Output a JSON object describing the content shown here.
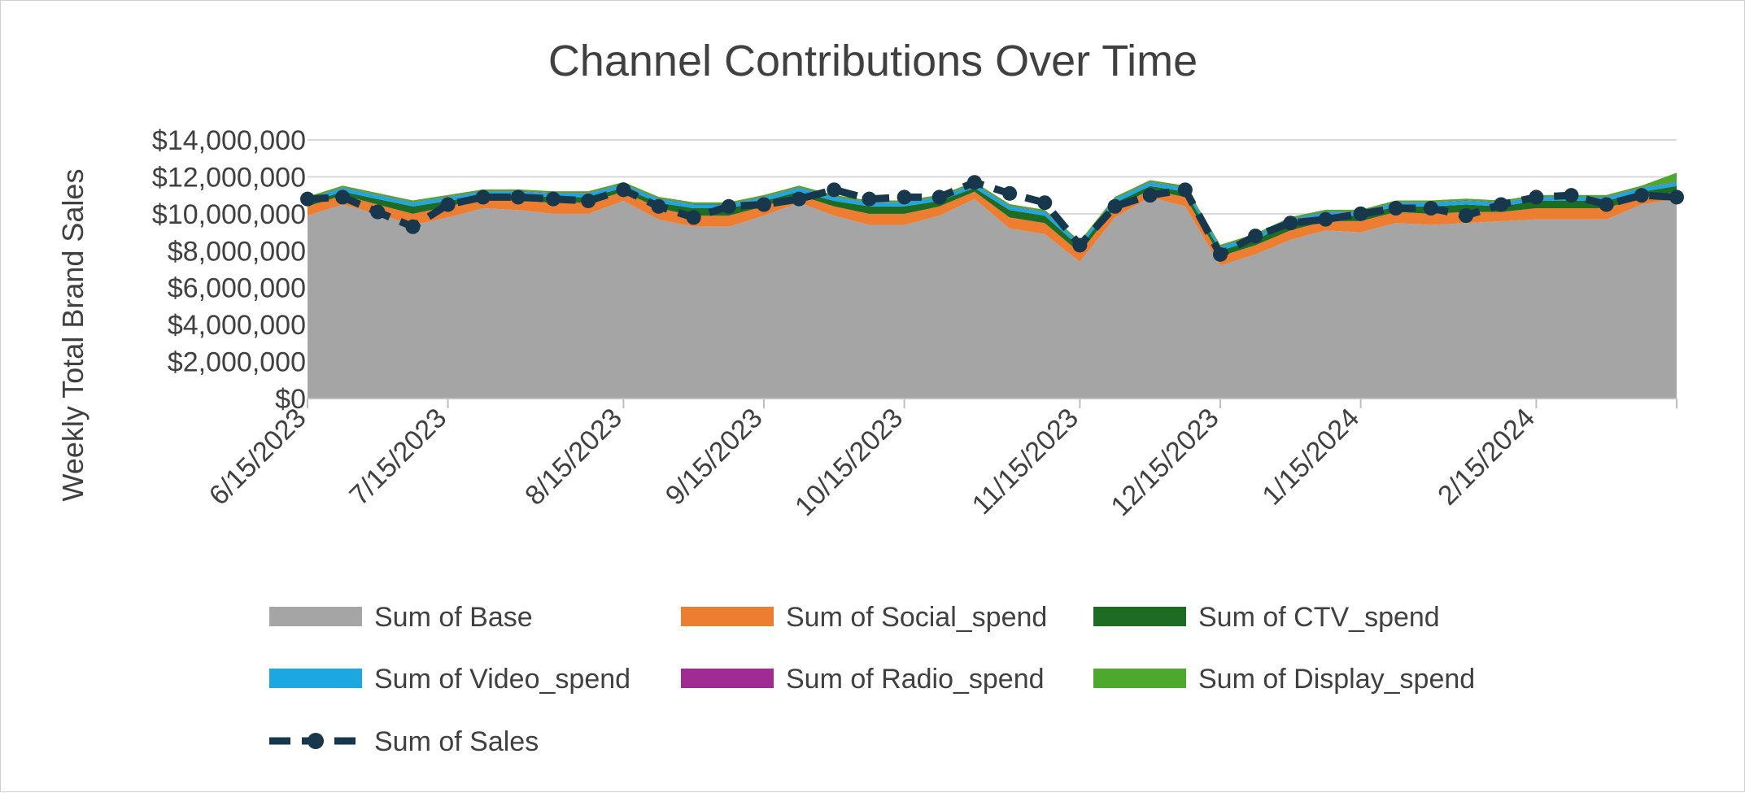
{
  "chart_data": {
    "type": "area",
    "title": "Channel Contributions Over Time",
    "ylabel": "Weekly Total Brand Sales",
    "xlabel": "",
    "ylim": [
      0,
      14000000
    ],
    "yticks": [
      0,
      2000000,
      4000000,
      6000000,
      8000000,
      10000000,
      12000000,
      14000000
    ],
    "ytick_labels": [
      "$0",
      "$2,000,000",
      "$4,000,000",
      "$6,000,000",
      "$8,000,000",
      "$10,000,000",
      "$12,000,000",
      "$14,000,000"
    ],
    "xtick_labels": [
      "6/15/2023",
      "7/15/2023",
      "8/15/2023",
      "9/15/2023",
      "10/15/2023",
      "11/15/2023",
      "12/15/2023",
      "1/15/2024",
      "2/15/2024"
    ],
    "grid": true,
    "legend_position": "bottom",
    "x": [
      "6/15/2023",
      "6/22/2023",
      "6/29/2023",
      "7/6/2023",
      "7/13/2023",
      "7/20/2023",
      "7/27/2023",
      "8/3/2023",
      "8/10/2023",
      "8/17/2023",
      "8/24/2023",
      "8/31/2023",
      "9/7/2023",
      "9/14/2023",
      "9/21/2023",
      "9/28/2023",
      "10/5/2023",
      "10/12/2023",
      "10/19/2023",
      "10/26/2023",
      "11/2/2023",
      "11/9/2023",
      "11/16/2023",
      "11/23/2023",
      "11/30/2023",
      "12/7/2023",
      "12/14/2023",
      "12/21/2023",
      "12/28/2023",
      "1/4/2024",
      "1/11/2024",
      "1/18/2024",
      "1/25/2024",
      "2/1/2024",
      "2/8/2024",
      "2/15/2024",
      "2/22/2024",
      "2/29/2024",
      "3/7/2024",
      "3/14/2024"
    ],
    "series": [
      {
        "name": "Sum of Base",
        "kind": "area",
        "color": "#A5A5A5",
        "values": [
          9900000,
          10500000,
          10000000,
          9400000,
          9800000,
          10300000,
          10200000,
          10000000,
          10000000,
          10700000,
          9700000,
          9300000,
          9300000,
          9900000,
          10600000,
          9900000,
          9400000,
          9400000,
          9900000,
          10800000,
          9200000,
          8900000,
          7400000,
          9800000,
          10900000,
          10400000,
          7200000,
          7800000,
          8600000,
          9100000,
          9000000,
          9500000,
          9400000,
          9500000,
          9600000,
          9700000,
          9700000,
          9700000,
          10500000,
          10800000
        ]
      },
      {
        "name": "Sum of Social_spend",
        "kind": "area",
        "color": "#ED7D31",
        "values": [
          500000,
          500000,
          500000,
          600000,
          600000,
          500000,
          500000,
          600000,
          600000,
          500000,
          600000,
          600000,
          600000,
          500000,
          400000,
          500000,
          600000,
          600000,
          500000,
          400000,
          600000,
          600000,
          500000,
          500000,
          400000,
          500000,
          500000,
          500000,
          500000,
          500000,
          600000,
          600000,
          600000,
          600000,
          500000,
          600000,
          600000,
          600000,
          400000,
          400000
        ]
      },
      {
        "name": "Sum of CTV_spend",
        "kind": "area",
        "color": "#1E6B23",
        "values": [
          200000,
          200000,
          300000,
          400000,
          300000,
          200000,
          300000,
          300000,
          300000,
          200000,
          300000,
          400000,
          400000,
          300000,
          200000,
          300000,
          400000,
          400000,
          300000,
          200000,
          400000,
          400000,
          300000,
          300000,
          200000,
          300000,
          300000,
          300000,
          400000,
          300000,
          300000,
          300000,
          400000,
          400000,
          300000,
          400000,
          400000,
          400000,
          300000,
          300000
        ]
      },
      {
        "name": "Sum of Video_spend",
        "kind": "area",
        "color": "#1CA7E0",
        "values": [
          200000,
          200000,
          200000,
          200000,
          200000,
          200000,
          200000,
          200000,
          200000,
          200000,
          200000,
          200000,
          200000,
          200000,
          200000,
          200000,
          200000,
          200000,
          200000,
          200000,
          200000,
          200000,
          200000,
          200000,
          200000,
          200000,
          200000,
          200000,
          200000,
          200000,
          200000,
          200000,
          200000,
          200000,
          200000,
          200000,
          200000,
          200000,
          200000,
          200000
        ]
      },
      {
        "name": "Sum of Radio_spend",
        "kind": "area",
        "color": "#A02B93",
        "values": [
          20000,
          20000,
          20000,
          20000,
          20000,
          20000,
          20000,
          20000,
          20000,
          20000,
          20000,
          20000,
          20000,
          20000,
          20000,
          20000,
          20000,
          20000,
          20000,
          20000,
          20000,
          20000,
          20000,
          20000,
          20000,
          20000,
          20000,
          20000,
          20000,
          20000,
          20000,
          20000,
          20000,
          20000,
          20000,
          20000,
          20000,
          20000,
          20000,
          20000
        ]
      },
      {
        "name": "Sum of Display_spend",
        "kind": "area",
        "color": "#4EA72E",
        "values": [
          100000,
          100000,
          100000,
          100000,
          100000,
          100000,
          100000,
          100000,
          100000,
          100000,
          100000,
          100000,
          100000,
          100000,
          100000,
          100000,
          100000,
          100000,
          100000,
          100000,
          100000,
          100000,
          100000,
          100000,
          100000,
          100000,
          100000,
          100000,
          100000,
          100000,
          100000,
          100000,
          100000,
          100000,
          100000,
          100000,
          100000,
          100000,
          100000,
          500000
        ]
      },
      {
        "name": "Sum of Sales",
        "kind": "line",
        "color": "#17374D",
        "values": [
          10800000,
          10900000,
          10100000,
          9300000,
          10500000,
          10900000,
          10900000,
          10800000,
          10700000,
          11300000,
          10400000,
          9800000,
          10400000,
          10500000,
          10800000,
          11300000,
          10800000,
          10900000,
          10900000,
          11700000,
          11100000,
          10600000,
          8300000,
          10400000,
          11000000,
          11300000,
          7800000,
          8800000,
          9500000,
          9700000,
          10000000,
          10300000,
          10300000,
          9900000,
          10500000,
          10900000,
          11000000,
          10500000,
          11000000,
          10900000
        ]
      }
    ]
  }
}
